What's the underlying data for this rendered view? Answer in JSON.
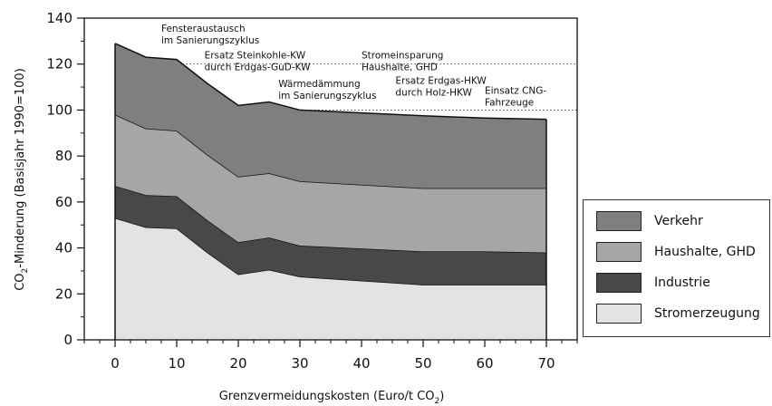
{
  "chart_data": {
    "type": "area",
    "stacked": true,
    "xlabel": "Grenzvermeidungskosten (Euro/t CO2)",
    "ylabel": "CO2-Minderung (Basisjahr 1990=100)",
    "xlim": [
      -5,
      75
    ],
    "ylim": [
      0,
      140
    ],
    "xticks": [
      "0",
      "10",
      "20",
      "30",
      "40",
      "50",
      "60",
      "70"
    ],
    "yticks": [
      "0",
      "20",
      "40",
      "60",
      "80",
      "100",
      "120",
      "140"
    ],
    "gridlines_y": [
      100,
      120
    ],
    "x": [
      0,
      5,
      10,
      15,
      20,
      25,
      30,
      50,
      60,
      70
    ],
    "series": [
      {
        "name": "Stromerzeugung",
        "color": "#e3e3e3",
        "values": [
          53,
          49,
          48.5,
          38,
          28.5,
          30.5,
          27.5,
          24,
          24,
          24
        ]
      },
      {
        "name": "Industrie",
        "color": "#484848",
        "values": [
          14,
          14,
          14,
          14,
          14,
          14,
          13.5,
          14.5,
          14.5,
          14
        ]
      },
      {
        "name": "Haushalte, GHD",
        "color": "#a6a6a6",
        "values": [
          31,
          29,
          28.5,
          28.5,
          28.5,
          28,
          28,
          27.5,
          27.5,
          28
        ]
      },
      {
        "name": "Verkehr",
        "color": "#7f7f7f",
        "values": [
          31,
          31,
          31,
          31,
          31,
          31,
          31,
          31.5,
          30.5,
          30
        ]
      }
    ],
    "annotations": [
      {
        "lines": [
          "Fensteraustausch",
          "im Sanierungszyklus"
        ]
      },
      {
        "lines": [
          "Ersatz Steinkohle-KW",
          "durch Erdgas-GuD-KW"
        ]
      },
      {
        "lines": [
          "Wärmedämmung",
          "im Sanierungszyklus"
        ]
      },
      {
        "lines": [
          "Stromeinsparung",
          "Haushalte, GHD"
        ]
      },
      {
        "lines": [
          "Ersatz Erdgas-HKW",
          "durch Holz-HKW"
        ]
      },
      {
        "lines": [
          "Einsatz CNG-",
          "Fahrzeuge"
        ]
      }
    ],
    "legend": {
      "position": "right",
      "items": [
        "Verkehr",
        "Haushalte, GHD",
        "Industrie",
        "Stromerzeugung"
      ]
    }
  }
}
